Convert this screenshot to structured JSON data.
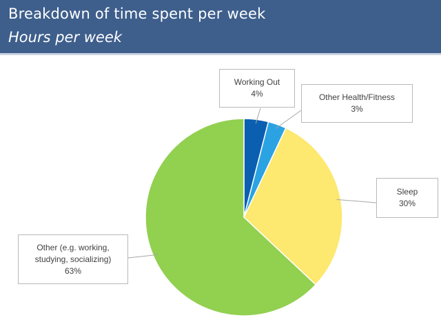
{
  "header": {
    "title": "Breakdown of time spent per week",
    "subtitle": "Hours per week"
  },
  "chart_data": {
    "type": "pie",
    "title": "Breakdown of time spent per week",
    "subtitle": "Hours per week",
    "slices": [
      {
        "label": "Working Out",
        "value": 4,
        "value_label": "4%",
        "color": "#0b5fb0"
      },
      {
        "label": "Other Health/Fitness",
        "value": 3,
        "value_label": "3%",
        "color": "#2ba3e3"
      },
      {
        "label": "Sleep",
        "value": 30,
        "value_label": "30%",
        "color": "#fde870"
      },
      {
        "label": "Other (e.g. working, studying, socializing)",
        "value": 63,
        "value_label": "63%",
        "color": "#92d050"
      }
    ],
    "start_angle": "12 o'clock",
    "direction": "clockwise",
    "legend": "none",
    "data_labels": "callout boxes with leader lines"
  }
}
